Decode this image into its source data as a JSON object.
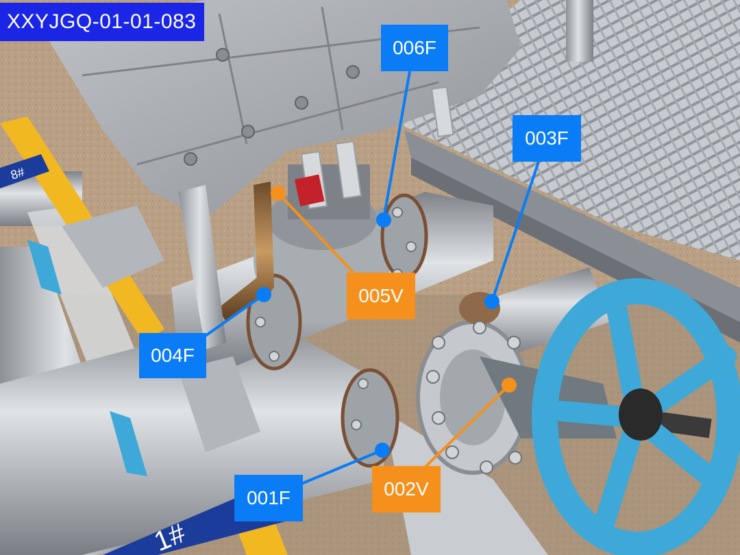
{
  "image_id": "XXYJGQ-01-01-083",
  "pipe_marking": "1#",
  "pipe_marking_top": "8#",
  "colors": {
    "blue_label": "#0a7cf5",
    "orange_label": "#f5901c",
    "id_badge": "#1a25e6",
    "handwheel": "#3ea8d8",
    "pipe": "#b9bdc2",
    "insulation": "#a9acb1",
    "grating": "#9ea3a9",
    "yellow_pipe": "#f2b822"
  },
  "callouts": [
    {
      "id": "006F",
      "kind": "flange",
      "color": "blue"
    },
    {
      "id": "003F",
      "kind": "flange",
      "color": "blue"
    },
    {
      "id": "005V",
      "kind": "valve",
      "color": "orange"
    },
    {
      "id": "004F",
      "kind": "flange",
      "color": "blue"
    },
    {
      "id": "001F",
      "kind": "flange",
      "color": "blue"
    },
    {
      "id": "002V",
      "kind": "valve",
      "color": "orange"
    }
  ]
}
